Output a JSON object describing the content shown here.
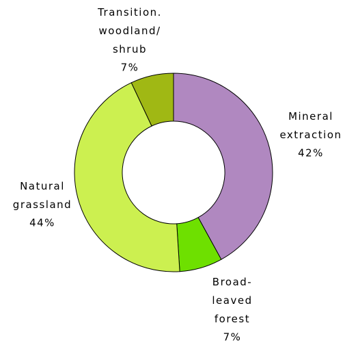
{
  "chart_data": {
    "type": "donut",
    "categories": [
      "Mineral\nextraction",
      "Broad-\nleaved\nforest",
      "Natural\ngrassland",
      "Transition.\nwoodland/\nshrub"
    ],
    "values": [
      42,
      7,
      44,
      7
    ],
    "value_labels": [
      "42%",
      "7%",
      "44%",
      "7%"
    ],
    "colors": [
      "#b088c0",
      "#6ee000",
      "#ccf050",
      "#a0b814"
    ]
  }
}
